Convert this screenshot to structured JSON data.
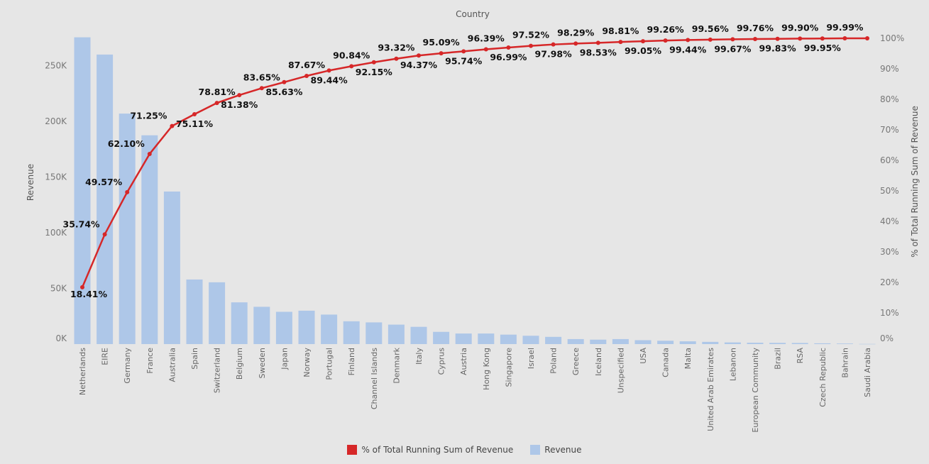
{
  "chart_data": {
    "type": "bar",
    "title": "Country",
    "ylabel": "Revenue",
    "y2label": "% of Total Running Sum of Revenue",
    "categories": [
      "Netherlands",
      "EIRE",
      "Germany",
      "France",
      "Australia",
      "Spain",
      "Switzerland",
      "Belgium",
      "Sweden",
      "Japan",
      "Norway",
      "Portugal",
      "Finland",
      "Channel Islands",
      "Denmark",
      "Italy",
      "Cyprus",
      "Austria",
      "Hong Kong",
      "Singapore",
      "Israel",
      "Poland",
      "Greece",
      "Iceland",
      "Unspecified",
      "USA",
      "Canada",
      "Malta",
      "United Arab Emirates",
      "Lebanon",
      "European Community",
      "Brazil",
      "RSA",
      "Czech Republic",
      "Bahrain",
      "Saudi Arabia"
    ],
    "series": [
      {
        "name": "Revenue",
        "kind": "bar",
        "color": "#aec7e8",
        "values": [
          275500,
          260000,
          207000,
          187500,
          137000,
          58000,
          55500,
          37500,
          33500,
          29000,
          30000,
          26500,
          20500,
          19500,
          17500,
          15500,
          11000,
          9500,
          9500,
          8500,
          7500,
          6500,
          4500,
          4000,
          4500,
          3500,
          3000,
          2500,
          2000,
          1500,
          1200,
          1100,
          1000,
          700,
          500,
          150
        ]
      },
      {
        "name": "% of Total Running Sum of Revenue",
        "kind": "line",
        "axis": "right",
        "color": "#d62728",
        "values": [
          18.41,
          35.74,
          49.57,
          62.1,
          71.25,
          75.11,
          78.81,
          81.38,
          83.65,
          85.63,
          87.67,
          89.44,
          90.84,
          92.15,
          93.32,
          94.37,
          95.09,
          95.74,
          96.39,
          96.99,
          97.52,
          97.98,
          98.29,
          98.53,
          98.81,
          99.05,
          99.26,
          99.44,
          99.56,
          99.67,
          99.76,
          99.83,
          99.9,
          99.95,
          99.99,
          100.0
        ],
        "labels": [
          "18.41%",
          "35.74%",
          "49.57%",
          "62.10%",
          "71.25%",
          "75.11%",
          "78.81%",
          "81.38%",
          "83.65%",
          "85.63%",
          "87.67%",
          "89.44%",
          "90.84%",
          "92.15%",
          "93.32%",
          "94.37%",
          "95.09%",
          "95.74%",
          "96.39%",
          "96.99%",
          "97.52%",
          "97.98%",
          "98.29%",
          "98.53%",
          "98.81%",
          "99.05%",
          "99.26%",
          "99.44%",
          "99.56%",
          "99.67%",
          "99.76%",
          "99.83%",
          "99.90%",
          "99.95%",
          "99.99%",
          ""
        ]
      }
    ],
    "ylim": [
      0,
      280000
    ],
    "yticks": [
      0,
      50000,
      100000,
      150000,
      200000,
      250000
    ],
    "ytick_labels": [
      "0K",
      "50K",
      "100K",
      "150K",
      "200K",
      "250K"
    ],
    "y2lim": [
      0,
      100
    ],
    "y2ticks": [
      0,
      10,
      20,
      30,
      40,
      50,
      60,
      70,
      80,
      90,
      100
    ],
    "y2tick_labels": [
      "0%",
      "10%",
      "20%",
      "30%",
      "40%",
      "50%",
      "60%",
      "70%",
      "80%",
      "90%",
      "100%"
    ],
    "grid": false,
    "legend_position": "bottom"
  },
  "legend": {
    "line_label": "% of Total Running Sum of Revenue",
    "bar_label": "Revenue",
    "line_color": "#d62728",
    "bar_color": "#aec7e8"
  }
}
